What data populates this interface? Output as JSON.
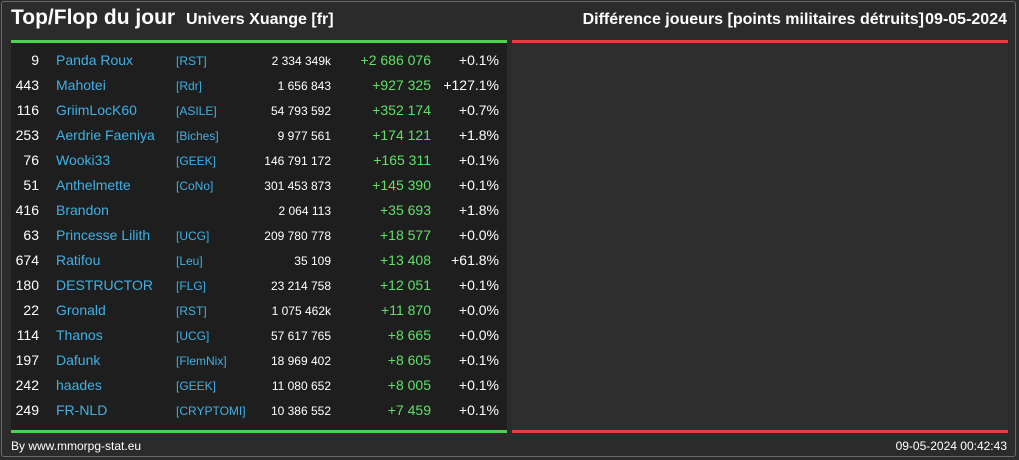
{
  "header": {
    "title": "Top/Flop du jour",
    "subtitle": "Univers Xuange [fr]",
    "right_title": "Différence joueurs [points militaires détruits]",
    "date": "09-05-2024"
  },
  "colors": {
    "background": "#2b2b2b",
    "top_accent": "#49d34f",
    "flop_accent": "#d8453f",
    "link": "#3fb0e6",
    "gain": "#5fe066"
  },
  "top_list": [
    {
      "rank": "9",
      "name": "Panda Roux",
      "alliance": "[RST]",
      "points": "2 334 349k",
      "diff": "+2 686 076",
      "pct": "+0.1%"
    },
    {
      "rank": "443",
      "name": "Mahotei",
      "alliance": "[Rdr]",
      "points": "1 656 843",
      "diff": "+927 325",
      "pct": "+127.1%"
    },
    {
      "rank": "116",
      "name": "GriimLocK60",
      "alliance": "[ASILE]",
      "points": "54 793 592",
      "diff": "+352 174",
      "pct": "+0.7%"
    },
    {
      "rank": "253",
      "name": "Aerdrie Faeniya",
      "alliance": "[Biches]",
      "points": "9 977 561",
      "diff": "+174 121",
      "pct": "+1.8%"
    },
    {
      "rank": "76",
      "name": "Wooki33",
      "alliance": "[GEEK]",
      "points": "146 791 172",
      "diff": "+165 311",
      "pct": "+0.1%"
    },
    {
      "rank": "51",
      "name": "Anthelmette",
      "alliance": "[CoNo]",
      "points": "301 453 873",
      "diff": "+145 390",
      "pct": "+0.1%"
    },
    {
      "rank": "416",
      "name": "Brandon",
      "alliance": "",
      "points": "2 064 113",
      "diff": "+35 693",
      "pct": "+1.8%"
    },
    {
      "rank": "63",
      "name": "Princesse Lilith",
      "alliance": "[UCG]",
      "points": "209 780 778",
      "diff": "+18 577",
      "pct": "+0.0%"
    },
    {
      "rank": "674",
      "name": "Ratifou",
      "alliance": "[Leu]",
      "points": "35 109",
      "diff": "+13 408",
      "pct": "+61.8%"
    },
    {
      "rank": "180",
      "name": "DESTRUCTOR",
      "alliance": "[FLG]",
      "points": "23 214 758",
      "diff": "+12 051",
      "pct": "+0.1%"
    },
    {
      "rank": "22",
      "name": "Gronald",
      "alliance": "[RST]",
      "points": "1 075 462k",
      "diff": "+11 870",
      "pct": "+0.0%"
    },
    {
      "rank": "114",
      "name": "Thanos",
      "alliance": "[UCG]",
      "points": "57 617 765",
      "diff": "+8 665",
      "pct": "+0.0%"
    },
    {
      "rank": "197",
      "name": "Dafunk",
      "alliance": "[FlemNix]",
      "points": "18 969 402",
      "diff": "+8 605",
      "pct": "+0.1%"
    },
    {
      "rank": "242",
      "name": "haades",
      "alliance": "[GEEK]",
      "points": "11 080 652",
      "diff": "+8 005",
      "pct": "+0.1%"
    },
    {
      "rank": "249",
      "name": "FR-NLD",
      "alliance": "[CRYPTOMI]",
      "points": "10 386 552",
      "diff": "+7 459",
      "pct": "+0.1%"
    }
  ],
  "footer": {
    "credit": "By www.mmorpg-stat.eu",
    "timestamp": "09-05-2024 00:42:43"
  }
}
